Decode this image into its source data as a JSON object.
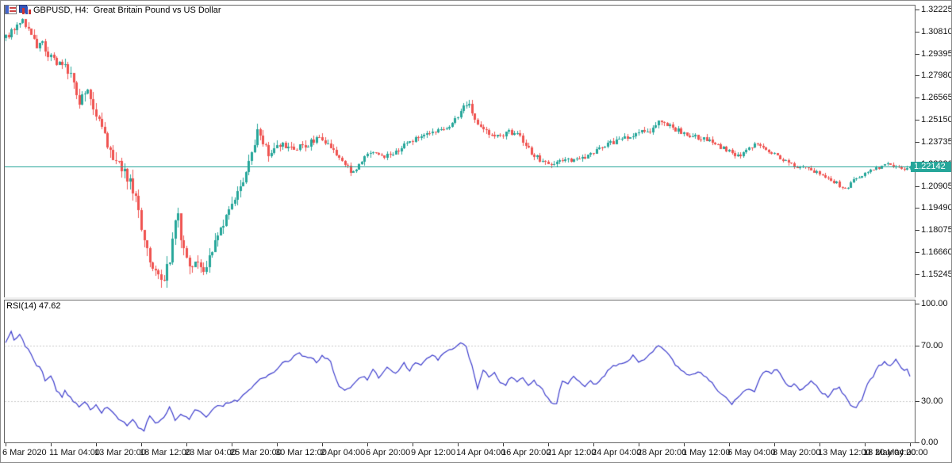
{
  "header": {
    "symbol_label": "GBPUSD, H4:  Great Britain Pound vs US Dollar",
    "icons": [
      "chart-window-icon",
      "indicator-bars-icon"
    ]
  },
  "price_panel": {
    "current_price": "1.22142",
    "axis_labels": [
      "1.32225",
      "1.30810",
      "1.29395",
      "1.27980",
      "1.26565",
      "1.25150",
      "1.23735",
      "1.22320",
      "1.20905",
      "1.19490",
      "1.18075",
      "1.16660",
      "1.15245"
    ]
  },
  "rsi_panel": {
    "label": "RSI(14) 47.62",
    "axis_labels": [
      "100.00",
      "70.00",
      "30.00",
      "0.00"
    ]
  },
  "time_axis": {
    "labels": [
      "6 Mar 2020",
      "11 Mar 04:00",
      "13 Mar 20:00",
      "18 Mar 12:00",
      "23 Mar 04:00",
      "25 Mar 20:00",
      "30 Mar 12:00",
      "2 Apr 04:00",
      "6 Apr 20:00",
      "9 Apr 12:00",
      "14 Apr 04:00",
      "16 Apr 20:00",
      "21 Apr 12:00",
      "24 Apr 04:00",
      "28 Apr 20:00",
      "1 May 12:00",
      "6 May 04:00",
      "8 May 20:00",
      "13 May 12:00",
      "18 May 04:00",
      "20 May 20:00"
    ]
  },
  "chart_data": {
    "type": "candlestick",
    "symbol": "GBPUSD",
    "timeframe": "H4",
    "description": "Great Britain Pound vs US Dollar",
    "bars": 321,
    "bars_per_time_tick": 16,
    "current_price": 1.22142,
    "price_axis": {
      "max_tick": 1.32225,
      "min_tick": 1.15245,
      "tick_step": 0.01415,
      "tick_labels": [
        "1.32225",
        "1.30810",
        "1.29395",
        "1.27980",
        "1.26565",
        "1.25150",
        "1.23735",
        "1.22320",
        "1.20905",
        "1.19490",
        "1.18075",
        "1.16660",
        "1.15245"
      ]
    },
    "time_labels": [
      "6 Mar 2020",
      "11 Mar 04:00",
      "13 Mar 20:00",
      "18 Mar 12:00",
      "23 Mar 04:00",
      "25 Mar 20:00",
      "30 Mar 12:00",
      "2 Apr 04:00",
      "6 Apr 20:00",
      "9 Apr 12:00",
      "14 Apr 04:00",
      "16 Apr 20:00",
      "21 Apr 12:00",
      "24 Apr 04:00",
      "28 Apr 20:00",
      "1 May 12:00",
      "6 May 04:00",
      "8 May 20:00",
      "13 May 12:00",
      "18 May 04:00",
      "20 May 20:00"
    ],
    "price_keyframes": [
      [
        0,
        1.304
      ],
      [
        2,
        1.3075
      ],
      [
        4,
        1.314
      ],
      [
        6,
        1.316
      ],
      [
        8,
        1.309
      ],
      [
        11,
        1.2985
      ],
      [
        13,
        1.301
      ],
      [
        15,
        1.294
      ],
      [
        17,
        1.29
      ],
      [
        19,
        1.287
      ],
      [
        21,
        1.285
      ],
      [
        23,
        1.282
      ],
      [
        26,
        1.264
      ],
      [
        29,
        1.272
      ],
      [
        32,
        1.254
      ],
      [
        34,
        1.245
      ],
      [
        36,
        1.235
      ],
      [
        39,
        1.223
      ],
      [
        41,
        1.22
      ],
      [
        44,
        1.214
      ],
      [
        46,
        1.2
      ],
      [
        48,
        1.184
      ],
      [
        50,
        1.168
      ],
      [
        52,
        1.157
      ],
      [
        54,
        1.152
      ],
      [
        56,
        1.15
      ],
      [
        58,
        1.162
      ],
      [
        60,
        1.184
      ],
      [
        61,
        1.188
      ],
      [
        62,
        1.175
      ],
      [
        64,
        1.16
      ],
      [
        66,
        1.156
      ],
      [
        68,
        1.163
      ],
      [
        70,
        1.155
      ],
      [
        72,
        1.164
      ],
      [
        74,
        1.175
      ],
      [
        76,
        1.182
      ],
      [
        78,
        1.19
      ],
      [
        80,
        1.196
      ],
      [
        82,
        1.205
      ],
      [
        85,
        1.218
      ],
      [
        87,
        1.228
      ],
      [
        89,
        1.244
      ],
      [
        91,
        1.238
      ],
      [
        93,
        1.23
      ],
      [
        95,
        1.233
      ],
      [
        98,
        1.236
      ],
      [
        101,
        1.233
      ],
      [
        104,
        1.234
      ],
      [
        107,
        1.236
      ],
      [
        110,
        1.24
      ],
      [
        113,
        1.238
      ],
      [
        116,
        1.232
      ],
      [
        119,
        1.225
      ],
      [
        122,
        1.218
      ],
      [
        124,
        1.221
      ],
      [
        127,
        1.227
      ],
      [
        130,
        1.23
      ],
      [
        133,
        1.228
      ],
      [
        136,
        1.23
      ],
      [
        139,
        1.233
      ],
      [
        142,
        1.236
      ],
      [
        145,
        1.239
      ],
      [
        148,
        1.241
      ],
      [
        151,
        1.243
      ],
      [
        154,
        1.245
      ],
      [
        157,
        1.248
      ],
      [
        160,
        1.253
      ],
      [
        162,
        1.26
      ],
      [
        164,
        1.262
      ],
      [
        166,
        1.25
      ],
      [
        168,
        1.247
      ],
      [
        171,
        1.243
      ],
      [
        174,
        1.241
      ],
      [
        177,
        1.243
      ],
      [
        180,
        1.244
      ],
      [
        183,
        1.238
      ],
      [
        186,
        1.23
      ],
      [
        189,
        1.226
      ],
      [
        192,
        1.222
      ],
      [
        195,
        1.225
      ],
      [
        198,
        1.227
      ],
      [
        201,
        1.225
      ],
      [
        204,
        1.227
      ],
      [
        207,
        1.23
      ],
      [
        210,
        1.233
      ],
      [
        213,
        1.236
      ],
      [
        216,
        1.238
      ],
      [
        219,
        1.24
      ],
      [
        222,
        1.242
      ],
      [
        225,
        1.244
      ],
      [
        228,
        1.245
      ],
      [
        230,
        1.248
      ],
      [
        231,
        1.252
      ],
      [
        233,
        1.25
      ],
      [
        236,
        1.246
      ],
      [
        239,
        1.244
      ],
      [
        242,
        1.242
      ],
      [
        245,
        1.24
      ],
      [
        248,
        1.239
      ],
      [
        251,
        1.236
      ],
      [
        254,
        1.233
      ],
      [
        257,
        1.23
      ],
      [
        260,
        1.228
      ],
      [
        263,
        1.233
      ],
      [
        266,
        1.236
      ],
      [
        269,
        1.233
      ],
      [
        272,
        1.23
      ],
      [
        275,
        1.226
      ],
      [
        278,
        1.223
      ],
      [
        281,
        1.221
      ],
      [
        284,
        1.22
      ],
      [
        287,
        1.218
      ],
      [
        290,
        1.215
      ],
      [
        293,
        1.212
      ],
      [
        296,
        1.208
      ],
      [
        298,
        1.209
      ],
      [
        300,
        1.213
      ],
      [
        303,
        1.216
      ],
      [
        306,
        1.219
      ],
      [
        309,
        1.221
      ],
      [
        312,
        1.223
      ],
      [
        315,
        1.222
      ],
      [
        318,
        1.22
      ],
      [
        320,
        1.22142
      ]
    ],
    "volatility_keyframes": [
      [
        0,
        0.0045
      ],
      [
        15,
        0.0055
      ],
      [
        30,
        0.0075
      ],
      [
        45,
        0.0095
      ],
      [
        60,
        0.0085
      ],
      [
        75,
        0.0075
      ],
      [
        90,
        0.006
      ],
      [
        110,
        0.0042
      ],
      [
        140,
        0.0035
      ],
      [
        170,
        0.0038
      ],
      [
        200,
        0.0032
      ],
      [
        230,
        0.0034
      ],
      [
        260,
        0.0028
      ],
      [
        290,
        0.0026
      ],
      [
        320,
        0.002
      ]
    ],
    "indicator": {
      "name": "RSI",
      "period": 14,
      "current": 47.62,
      "levels": [
        30,
        70
      ],
      "scale": {
        "min": 0,
        "max": 100,
        "tick_labels": [
          "100.00",
          "70.00",
          "30.00",
          "0.00"
        ]
      },
      "rsi_keyframes": [
        [
          0,
          72
        ],
        [
          2,
          80
        ],
        [
          3,
          74
        ],
        [
          5,
          78
        ],
        [
          7,
          70
        ],
        [
          9,
          63
        ],
        [
          11,
          56
        ],
        [
          13,
          52
        ],
        [
          14,
          45
        ],
        [
          16,
          48
        ],
        [
          18,
          38
        ],
        [
          20,
          33
        ],
        [
          21,
          37
        ],
        [
          24,
          29
        ],
        [
          26,
          26
        ],
        [
          28,
          30
        ],
        [
          30,
          24
        ],
        [
          32,
          27
        ],
        [
          34,
          22
        ],
        [
          36,
          25
        ],
        [
          38,
          21
        ],
        [
          40,
          17
        ],
        [
          43,
          13
        ],
        [
          45,
          16
        ],
        [
          47,
          11
        ],
        [
          49,
          9
        ],
        [
          51,
          20
        ],
        [
          53,
          14
        ],
        [
          56,
          18
        ],
        [
          58,
          25
        ],
        [
          60,
          16
        ],
        [
          62,
          20
        ],
        [
          65,
          17
        ],
        [
          67,
          24
        ],
        [
          69,
          21
        ],
        [
          71,
          19
        ],
        [
          74,
          25
        ],
        [
          77,
          27
        ],
        [
          80,
          29
        ],
        [
          82,
          30
        ],
        [
          85,
          35
        ],
        [
          88,
          42
        ],
        [
          90,
          45
        ],
        [
          92,
          47
        ],
        [
          94,
          50
        ],
        [
          96,
          53
        ],
        [
          98,
          57
        ],
        [
          100,
          59
        ],
        [
          102,
          62
        ],
        [
          104,
          64
        ],
        [
          106,
          61
        ],
        [
          108,
          61
        ],
        [
          110,
          58
        ],
        [
          112,
          62
        ],
        [
          115,
          58
        ],
        [
          118,
          40
        ],
        [
          120,
          37
        ],
        [
          123,
          42
        ],
        [
          126,
          48
        ],
        [
          128,
          45
        ],
        [
          130,
          52
        ],
        [
          132,
          47
        ],
        [
          135,
          54
        ],
        [
          137,
          50
        ],
        [
          139,
          51
        ],
        [
          141,
          57
        ],
        [
          143,
          52
        ],
        [
          145,
          58
        ],
        [
          147,
          55
        ],
        [
          149,
          60
        ],
        [
          151,
          63
        ],
        [
          153,
          60
        ],
        [
          155,
          64
        ],
        [
          158,
          67
        ],
        [
          161,
          71
        ],
        [
          163,
          69
        ],
        [
          165,
          55
        ],
        [
          167,
          39
        ],
        [
          169,
          52
        ],
        [
          171,
          47
        ],
        [
          173,
          50
        ],
        [
          175,
          44
        ],
        [
          177,
          42
        ],
        [
          179,
          47
        ],
        [
          181,
          44
        ],
        [
          183,
          47
        ],
        [
          185,
          42
        ],
        [
          187,
          44
        ],
        [
          189,
          40
        ],
        [
          191,
          35
        ],
        [
          193,
          28
        ],
        [
          195,
          28
        ],
        [
          197,
          45
        ],
        [
          199,
          43
        ],
        [
          201,
          47
        ],
        [
          203,
          44
        ],
        [
          205,
          40
        ],
        [
          207,
          44
        ],
        [
          209,
          42
        ],
        [
          211,
          46
        ],
        [
          213,
          52
        ],
        [
          215,
          55
        ],
        [
          217,
          57
        ],
        [
          219,
          58
        ],
        [
          221,
          60
        ],
        [
          222,
          62
        ],
        [
          224,
          58
        ],
        [
          226,
          60
        ],
        [
          228,
          64
        ],
        [
          231,
          70
        ],
        [
          233,
          67
        ],
        [
          235,
          63
        ],
        [
          237,
          55
        ],
        [
          239,
          52
        ],
        [
          241,
          48
        ],
        [
          243,
          49
        ],
        [
          245,
          51
        ],
        [
          247,
          48
        ],
        [
          249,
          45
        ],
        [
          251,
          40
        ],
        [
          253,
          36
        ],
        [
          255,
          32
        ],
        [
          257,
          28
        ],
        [
          259,
          33
        ],
        [
          261,
          36
        ],
        [
          263,
          38
        ],
        [
          265,
          36
        ],
        [
          267,
          47
        ],
        [
          269,
          52
        ],
        [
          271,
          50
        ],
        [
          273,
          53
        ],
        [
          275,
          46
        ],
        [
          277,
          40
        ],
        [
          279,
          42
        ],
        [
          281,
          38
        ],
        [
          283,
          40
        ],
        [
          285,
          44
        ],
        [
          287,
          41
        ],
        [
          289,
          35
        ],
        [
          291,
          33
        ],
        [
          293,
          38
        ],
        [
          295,
          39
        ],
        [
          297,
          33
        ],
        [
          299,
          27
        ],
        [
          301,
          26
        ],
        [
          303,
          30
        ],
        [
          305,
          42
        ],
        [
          307,
          48
        ],
        [
          309,
          55
        ],
        [
          311,
          58
        ],
        [
          313,
          56
        ],
        [
          315,
          60
        ],
        [
          317,
          53
        ],
        [
          319,
          52
        ],
        [
          320,
          47.62
        ]
      ]
    },
    "colors": {
      "up": "#26a69a",
      "down": "#ef5350",
      "rsi_line": "#3c3ccc",
      "level_dash": "#c8c8c8",
      "price_line": "#26a69a",
      "badge_bg": "#26a69a",
      "badge_text": "#ffffff"
    },
    "grid": false,
    "legend_position": "none"
  }
}
